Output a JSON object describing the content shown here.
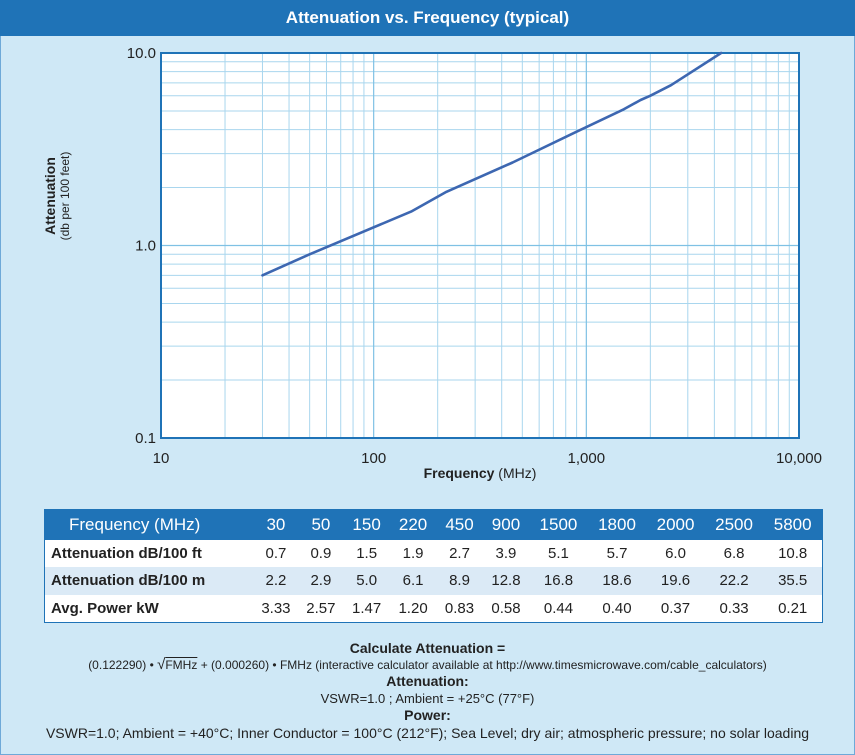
{
  "header": {
    "title": "Attenuation vs. Frequency (typical)"
  },
  "chart_data": {
    "type": "line",
    "title": "Attenuation vs. Frequency (typical)",
    "xlabel_bold": "Frequency",
    "xlabel_unit": "(MHz)",
    "ylabel": "Attenuation",
    "ylabel_sub": "(db per 100 feet)",
    "xscale": "log",
    "yscale": "log",
    "xlim": [
      10,
      10000
    ],
    "ylim": [
      0.1,
      10
    ],
    "xticks": [
      10,
      100,
      1000,
      10000
    ],
    "xtick_labels": [
      "10",
      "100",
      "1,000",
      "10,000"
    ],
    "yticks": [
      0.1,
      1,
      10
    ],
    "ytick_labels": [
      "0.1",
      "1.0",
      "10.0"
    ],
    "grid": true,
    "series": [
      {
        "x": [
          30,
          50,
          150,
          220,
          450,
          900,
          1500,
          1800,
          2000,
          2500,
          4300
        ],
        "y": [
          0.7,
          0.9,
          1.5,
          1.9,
          2.7,
          3.9,
          5.1,
          5.7,
          6.0,
          6.8,
          10.0
        ]
      }
    ]
  },
  "table": {
    "header_label": "Frequency (MHz)",
    "frequencies": [
      "30",
      "50",
      "150",
      "220",
      "450",
      "900",
      "1500",
      "1800",
      "2000",
      "2500",
      "5800"
    ],
    "rows": [
      {
        "label": "Attenuation dB/100 ft",
        "values": [
          "0.7",
          "0.9",
          "1.5",
          "1.9",
          "2.7",
          "3.9",
          "5.1",
          "5.7",
          "6.0",
          "6.8",
          "10.8"
        ]
      },
      {
        "label": "Attenuation dB/100 m",
        "values": [
          "2.2",
          "2.9",
          "5.0",
          "6.1",
          "8.9",
          "12.8",
          "16.8",
          "18.6",
          "19.6",
          "22.2",
          "35.5"
        ]
      },
      {
        "label": "Avg. Power kW",
        "values": [
          "3.33",
          "2.57",
          "1.47",
          "1.20",
          "0.83",
          "0.58",
          "0.44",
          "0.40",
          "0.37",
          "0.33",
          "0.21"
        ]
      }
    ]
  },
  "notes": {
    "calc_title": "Calculate Attenuation =",
    "formula_a": "(0.122290) •",
    "formula_sqrt_sym": "√",
    "formula_sqrt_term": "FMHz",
    "formula_b": "+ (0.000260) •",
    "formula_c": "FMHz (interactive calculator available at http://www.timesmicrowave.com/cable_calculators)",
    "att_title": "Attenuation:",
    "att_text": "VSWR=1.0 ; Ambient = +25°C (77°F)",
    "power_title": "Power:",
    "power_text": "VSWR=1.0; Ambient = +40°C; Inner Conductor = 100°C (212°F); Sea Level; dry air; atmospheric pressure; no solar loading"
  }
}
